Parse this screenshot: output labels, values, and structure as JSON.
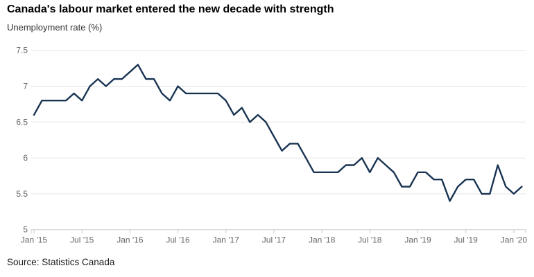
{
  "chart_data": {
    "type": "line",
    "title": "Canada's labour market entered the new decade with strength",
    "ylabel": "Unemployment rate (%)",
    "xlabel": "",
    "source": "Source: Statistics Canada",
    "x_range": "Jan 2015 - Feb 2020, monthly",
    "x_tick_labels": [
      "Jan '15",
      "Jul '15",
      "Jan '16",
      "Jul '16",
      "Jan '17",
      "Jul '17",
      "Jan '18",
      "Jul '18",
      "Jan '19",
      "Jul '19",
      "Jan '20"
    ],
    "x_tick_every_n_points": 6,
    "y_ticks": [
      7.5,
      7,
      6.5,
      6,
      5.5,
      5
    ],
    "ylim": [
      5,
      7.5
    ],
    "grid": "horizontal-only",
    "legend": "none",
    "series": [
      {
        "name": "Unemployment rate (%)",
        "values": [
          6.6,
          6.8,
          6.8,
          6.8,
          6.8,
          6.9,
          6.8,
          7.0,
          7.1,
          7.0,
          7.1,
          7.1,
          7.2,
          7.3,
          7.1,
          7.1,
          6.9,
          6.8,
          7.0,
          6.9,
          6.9,
          6.9,
          6.9,
          6.9,
          6.8,
          6.6,
          6.7,
          6.5,
          6.6,
          6.5,
          6.3,
          6.1,
          6.2,
          6.2,
          6.0,
          5.8,
          5.8,
          5.8,
          5.8,
          5.9,
          5.9,
          6.0,
          5.8,
          6.0,
          5.9,
          5.8,
          5.6,
          5.6,
          5.8,
          5.8,
          5.7,
          5.7,
          5.4,
          5.6,
          5.7,
          5.7,
          5.5,
          5.5,
          5.9,
          5.6,
          5.5,
          5.6
        ]
      }
    ],
    "colors": {
      "line": "#183352",
      "grid": "#e6e6e6",
      "axis_line": "#cccccc",
      "tick": "#c8c8c8",
      "axis_text": "#666666"
    }
  }
}
